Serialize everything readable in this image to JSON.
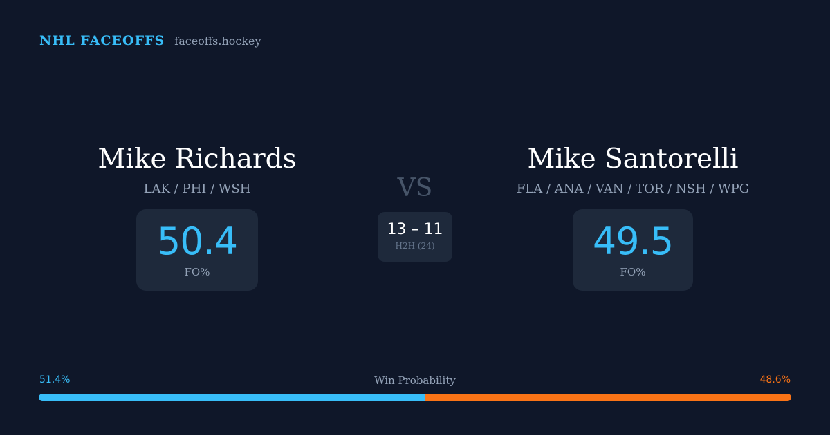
{
  "header": {
    "brand": "NHL FACEOFFS",
    "domain": "faceoffs.hockey"
  },
  "players": [
    {
      "name": "Mike Richards",
      "teams": "LAK / PHI / WSH",
      "fo_value": "50.4",
      "fo_label": "FO%"
    },
    {
      "name": "Mike Santorelli",
      "teams": "FLA / ANA / VAN / TOR / NSH / WPG",
      "fo_value": "49.5",
      "fo_label": "FO%"
    }
  ],
  "matchup": {
    "vs_label": "VS",
    "h2h_score": "13 – 11",
    "h2h_label": "H2H (24)"
  },
  "win_probability": {
    "title": "Win Probability",
    "left_label": "51.4%",
    "right_label": "48.6%",
    "left_value": 51.4,
    "right_value": 48.6
  },
  "colors": {
    "background": "#0f1729",
    "accent_blue": "#38bdf8",
    "accent_orange": "#f97316",
    "card": "#1e293b",
    "muted_text": "#94a3b8"
  }
}
